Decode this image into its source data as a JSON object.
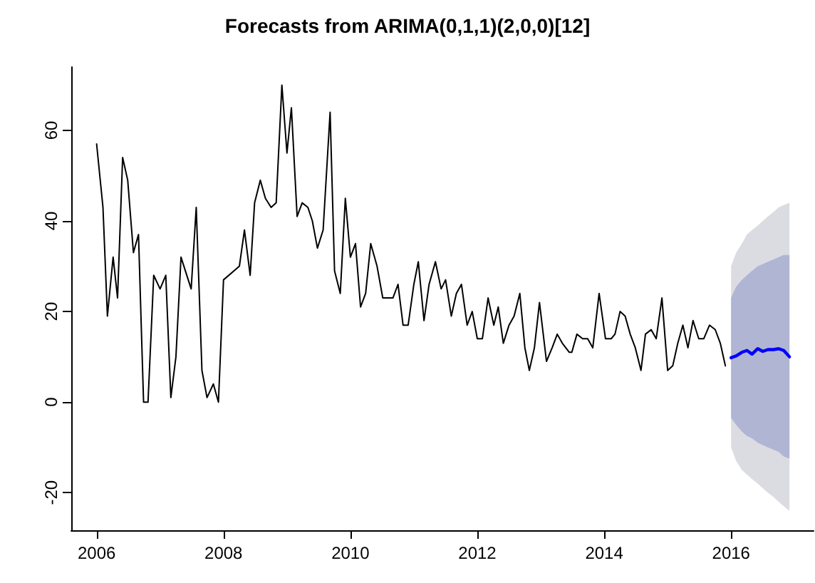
{
  "chart_data": {
    "type": "line",
    "title": "Forecasts from ARIMA(0,1,1)(2,0,0)[12]",
    "xlim": [
      2005.6,
      2017.3
    ],
    "xticks": [
      2006,
      2008,
      2010,
      2012,
      2014,
      2016
    ],
    "ylim": [
      -28.3,
      74
    ],
    "yticks": [
      -20,
      0,
      20,
      40,
      60
    ],
    "marker": "none",
    "line_style": "solid",
    "series": [
      {
        "color": "#dbdbe2",
        "x": [
          2016.0,
          2016.08,
          2016.17,
          2016.25,
          2016.33,
          2016.42,
          2016.5,
          2016.58,
          2016.67,
          2016.75,
          2016.83,
          2016.92
        ],
        "values": [
          null,
          null,
          null,
          null,
          null,
          null,
          null,
          null,
          null,
          null,
          null,
          null
        ],
        "lower": [
          -10,
          -13,
          -15,
          -16,
          -17,
          -18,
          -19,
          -20,
          -21,
          -22,
          -23,
          -24
        ],
        "upper": [
          30,
          33,
          35,
          37,
          38,
          39,
          40,
          41,
          42,
          43,
          43.5,
          44
        ]
      },
      {
        "color": "#b1b5d4",
        "x": [
          2016.0,
          2016.08,
          2016.17,
          2016.25,
          2016.33,
          2016.42,
          2016.5,
          2016.58,
          2016.67,
          2016.75,
          2016.83,
          2016.92
        ],
        "values": [
          null,
          null,
          null,
          null,
          null,
          null,
          null,
          null,
          null,
          null,
          null,
          null
        ],
        "lower": [
          -3.5,
          -5,
          -6.5,
          -7.5,
          -8,
          -9,
          -9.5,
          -10,
          -10.5,
          -11,
          -12,
          -12.5
        ],
        "upper": [
          23,
          25.5,
          27,
          28,
          29,
          30,
          30.5,
          31,
          31.5,
          32,
          32.5,
          32.5
        ]
      },
      {
        "color": "#000000",
        "x": [
          2006.0,
          2006.1,
          2006.17,
          2006.26,
          2006.33,
          2006.41,
          2006.49,
          2006.58,
          2006.66,
          2006.74,
          2006.81,
          2006.9,
          2007.0,
          2007.09,
          2007.17,
          2007.25,
          2007.33,
          2007.49,
          2007.57,
          2007.66,
          2007.74,
          2007.84,
          2007.92,
          2008.0,
          2008.25,
          2008.33,
          2008.42,
          2008.49,
          2008.58,
          2008.66,
          2008.75,
          2008.83,
          2008.92,
          2009.0,
          2009.07,
          2009.16,
          2009.24,
          2009.33,
          2009.4,
          2009.48,
          2009.57,
          2009.68,
          2009.75,
          2009.84,
          2009.92,
          2010.0,
          2010.08,
          2010.16,
          2010.24,
          2010.32,
          2010.42,
          2010.51,
          2010.67,
          2010.75,
          2010.83,
          2010.91,
          2011.0,
          2011.07,
          2011.16,
          2011.24,
          2011.34,
          2011.43,
          2011.5,
          2011.59,
          2011.67,
          2011.75,
          2011.84,
          2011.92,
          2012.0,
          2012.08,
          2012.17,
          2012.26,
          2012.33,
          2012.41,
          2012.5,
          2012.58,
          2012.67,
          2012.75,
          2012.82,
          2012.9,
          2012.98,
          2013.09,
          2013.18,
          2013.26,
          2013.34,
          2013.45,
          2013.49,
          2013.57,
          2013.66,
          2013.74,
          2013.82,
          2013.92,
          2014.02,
          2014.11,
          2014.17,
          2014.25,
          2014.33,
          2014.41,
          2014.49,
          2014.58,
          2014.65,
          2014.74,
          2014.82,
          2014.91,
          2015.0,
          2015.08,
          2015.16,
          2015.24,
          2015.32,
          2015.4,
          2015.49,
          2015.57,
          2015.66,
          2015.75,
          2015.83,
          2015.91
        ],
        "values": [
          57,
          43,
          19,
          32,
          23,
          54,
          49,
          33,
          37,
          0,
          0,
          28,
          25,
          28,
          1,
          10,
          32,
          25,
          43,
          7,
          1,
          4,
          0,
          27,
          30,
          38,
          28,
          44,
          49,
          45,
          43,
          44,
          70,
          55,
          65,
          41,
          44,
          43,
          40,
          34,
          38,
          64,
          29,
          24,
          45,
          32,
          35,
          21,
          24,
          35,
          30,
          23,
          23,
          26,
          17,
          17,
          26,
          31,
          18,
          26,
          31,
          25,
          27,
          19,
          24,
          26,
          17,
          20,
          14,
          14,
          23,
          17,
          21,
          13,
          17,
          19,
          24,
          12,
          7,
          12,
          22,
          9,
          12,
          15,
          13,
          11,
          11,
          15,
          14,
          14,
          12,
          24,
          14,
          14,
          15,
          20,
          19,
          15,
          12,
          7,
          15,
          16,
          14,
          23,
          7,
          8,
          13,
          17,
          12,
          18,
          14,
          14,
          17,
          16,
          13,
          8
        ]
      },
      {
        "color": "#0000ff",
        "x": [
          2016.0,
          2016.08,
          2016.17,
          2016.25,
          2016.33,
          2016.42,
          2016.5,
          2016.58,
          2016.67,
          2016.75,
          2016.83,
          2016.92
        ],
        "values": [
          9.8,
          10.2,
          11,
          11.4,
          10.6,
          11.8,
          11.2,
          11.6,
          11.6,
          11.8,
          11.4,
          10
        ]
      }
    ]
  }
}
